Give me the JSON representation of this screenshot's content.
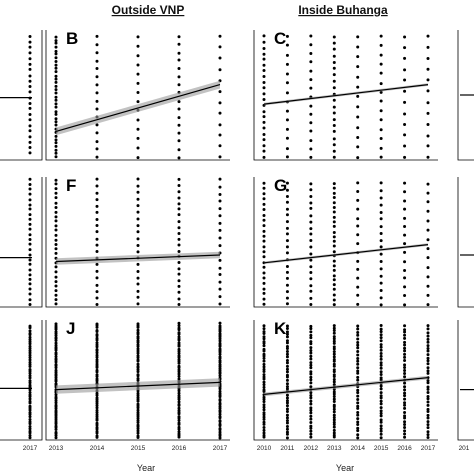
{
  "column_headers": [
    "Outside VNP",
    "Inside Buhanga"
  ],
  "x_axis_label": "Year",
  "chart_data": [
    {
      "id": "A",
      "letter": "",
      "type": "scatter",
      "x_ticks": [],
      "x_range": [
        2013,
        2017
      ],
      "dot_years": [
        2017
      ],
      "trend": [
        0.52,
        0.52
      ],
      "band": 0.0,
      "dot_counts": [
        22
      ],
      "spread": [
        0.05,
        0.95
      ]
    },
    {
      "id": "B",
      "letter": "B",
      "type": "scatter",
      "x_ticks": [],
      "x_range": [
        2013,
        2017
      ],
      "dot_years": [
        2013,
        2014,
        2015,
        2016,
        2017
      ],
      "trend": [
        0.42,
        0.78
      ],
      "band": 0.03,
      "dot_counts": [
        35,
        16,
        14,
        16,
        12
      ],
      "spread": [
        0.05,
        0.98
      ]
    },
    {
      "id": "C",
      "letter": "C",
      "type": "scatter",
      "x_ticks": [],
      "x_range": [
        2010,
        2017
      ],
      "dot_years": [
        2010,
        2011,
        2012,
        2013,
        2014,
        2015,
        2016,
        2017
      ],
      "trend": [
        0.42,
        0.57
      ],
      "band": 0.01,
      "dot_counts": [
        22,
        14,
        15,
        20,
        13,
        14,
        12,
        12
      ],
      "spread": [
        0.05,
        0.98
      ]
    },
    {
      "id": "D",
      "letter": "",
      "type": "scatter",
      "x_ticks": [],
      "x_range": [
        2010,
        2017
      ],
      "dot_years": [],
      "trend": [
        0.5,
        0.5
      ],
      "band": 0.0,
      "dot_counts": [],
      "spread": [
        0.2,
        0.9
      ]
    },
    {
      "id": "E",
      "letter": "",
      "type": "scatter",
      "x_ticks": [],
      "x_range": [
        2013,
        2017
      ],
      "dot_years": [
        2017
      ],
      "trend": [
        0.62,
        0.62
      ],
      "band": 0.0,
      "dot_counts": [
        26
      ],
      "spread": [
        0.02,
        0.98
      ]
    },
    {
      "id": "F",
      "letter": "F",
      "type": "scatter",
      "x_ticks": [],
      "x_range": [
        2013,
        2017
      ],
      "dot_years": [
        2013,
        2014,
        2015,
        2016,
        2017
      ],
      "trend": [
        0.6,
        0.65
      ],
      "band": 0.025,
      "dot_counts": [
        28,
        20,
        20,
        22,
        18
      ],
      "spread": [
        0.02,
        0.98
      ]
    },
    {
      "id": "G",
      "letter": "G",
      "type": "scatter",
      "x_ticks": [],
      "x_range": [
        2010,
        2017
      ],
      "dot_years": [
        2010,
        2011,
        2012,
        2013,
        2014,
        2015,
        2016,
        2017
      ],
      "trend": [
        0.52,
        0.66
      ],
      "band": 0.01,
      "dot_counts": [
        24,
        20,
        20,
        26,
        15,
        18,
        15,
        14
      ],
      "spread": [
        0.05,
        0.98
      ]
    },
    {
      "id": "H",
      "letter": "",
      "type": "scatter",
      "x_ticks": [],
      "x_range": [
        2010,
        2017
      ],
      "dot_years": [],
      "trend": [
        0.6,
        0.6
      ],
      "band": 0.0,
      "dot_counts": [],
      "spread": [
        0.3,
        0.9
      ]
    },
    {
      "id": "I",
      "letter": "",
      "type": "scatter",
      "x_ticks": [
        "2017"
      ],
      "x_range": [
        2013,
        2017
      ],
      "dot_years": [
        2017
      ],
      "trend": [
        0.57,
        0.57
      ],
      "band": 0.0,
      "dot_counts": [
        50
      ],
      "spread": [
        0.05,
        0.98
      ]
    },
    {
      "id": "J",
      "letter": "J",
      "type": "scatter",
      "x_ticks": [
        "2013",
        "2014",
        "2015",
        "2016",
        "2017"
      ],
      "x_range": [
        2013,
        2017
      ],
      "dot_years": [
        2013,
        2014,
        2015,
        2016,
        2017
      ],
      "trend": [
        0.52,
        0.58
      ],
      "band": 0.035,
      "dot_counts": [
        60,
        55,
        55,
        55,
        60
      ],
      "spread": [
        0.03,
        0.98
      ]
    },
    {
      "id": "K",
      "letter": "K",
      "type": "scatter",
      "x_ticks": [
        "2010",
        "2011",
        "2012",
        "2013",
        "2014",
        "2015",
        "2016",
        "2017"
      ],
      "x_range": [
        2010,
        2017
      ],
      "dot_years": [
        2010,
        2011,
        2012,
        2013,
        2014,
        2015,
        2016,
        2017
      ],
      "trend": [
        0.48,
        0.62
      ],
      "band": 0.015,
      "dot_counts": [
        45,
        40,
        38,
        45,
        36,
        38,
        36,
        36
      ],
      "spread": [
        0.05,
        0.98
      ]
    },
    {
      "id": "L",
      "letter": "",
      "type": "scatter",
      "x_ticks": [
        "201"
      ],
      "x_range": [
        2010,
        2017
      ],
      "dot_years": [],
      "trend": [
        0.58,
        0.58
      ],
      "band": 0.0,
      "dot_counts": [],
      "spread": [
        0.3,
        0.9
      ]
    }
  ]
}
